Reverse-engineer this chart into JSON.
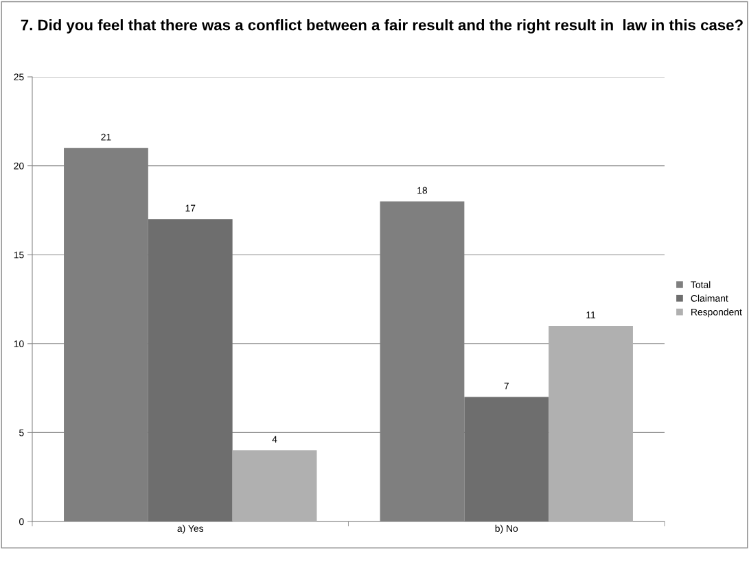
{
  "chart_data": {
    "type": "bar",
    "title": "7. Did you feel that there was a conflict between a fair result and the right result in  law in this case?",
    "categories": [
      "a) Yes",
      "b) No"
    ],
    "series": [
      {
        "name": "Total",
        "color": "#7f7f7f",
        "values": [
          21,
          18
        ]
      },
      {
        "name": "Claimant",
        "color": "#6e6e6e",
        "values": [
          17,
          7
        ]
      },
      {
        "name": "Respondent",
        "color": "#b0b0b0",
        "values": [
          4,
          11
        ]
      }
    ],
    "ylim": [
      0,
      25
    ],
    "yticks": [
      0,
      5,
      10,
      15,
      20,
      25
    ],
    "grid": "y",
    "legend": "right",
    "data_labels": true
  }
}
